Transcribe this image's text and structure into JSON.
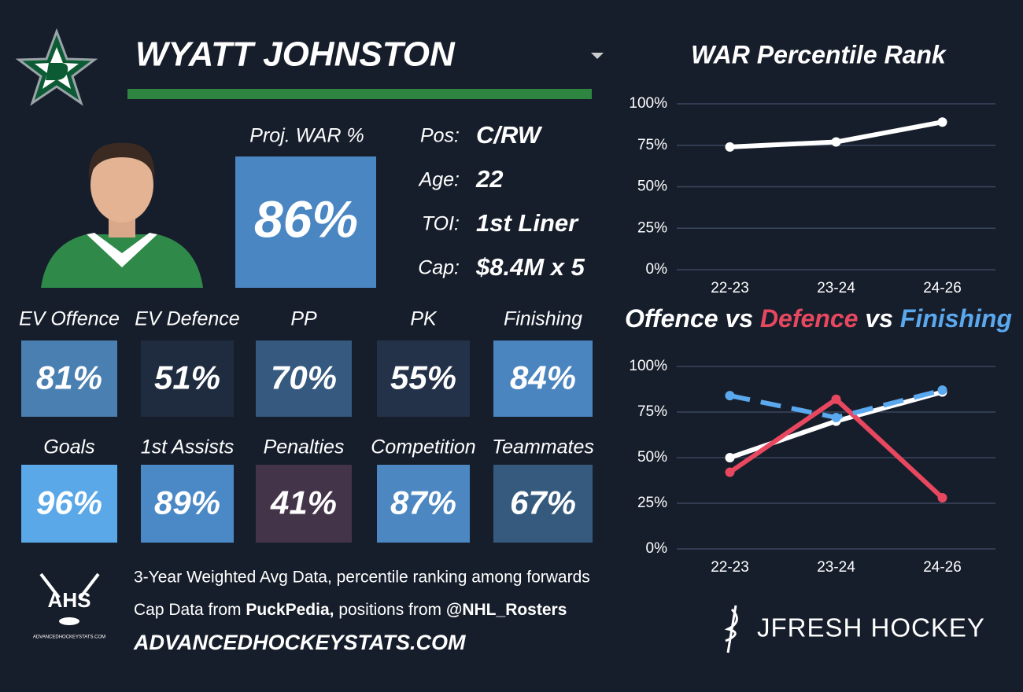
{
  "header": {
    "name": "WYATT JOHNSTON"
  },
  "proj_war": {
    "label": "Proj. WAR %",
    "value": "86%",
    "color": "#4a86c2"
  },
  "bio": [
    {
      "label": "Pos:",
      "value": "C/RW"
    },
    {
      "label": "Age:",
      "value": "22"
    },
    {
      "label": "TOI:",
      "value": "1st Liner"
    },
    {
      "label": "Cap:",
      "value": "$8.4M x 5"
    }
  ],
  "stats": [
    {
      "label": "EV Offence",
      "value": "81%",
      "color": "#4a7fb2"
    },
    {
      "label": "EV Defence",
      "value": "51%",
      "color": "#1f2c3f"
    },
    {
      "label": "PP",
      "value": "70%",
      "color": "#35597f"
    },
    {
      "label": "PK",
      "value": "55%",
      "color": "#243249"
    },
    {
      "label": "Finishing",
      "value": "84%",
      "color": "#4b85c0"
    },
    {
      "label": "Goals",
      "value": "96%",
      "color": "#5aa8e8"
    },
    {
      "label": "1st Assists",
      "value": "89%",
      "color": "#4b89c6"
    },
    {
      "label": "Penalties",
      "value": "41%",
      "color": "#44344a"
    },
    {
      "label": "Competition",
      "value": "87%",
      "color": "#4c87c2"
    },
    {
      "label": "Teammates",
      "value": "67%",
      "color": "#355a7e"
    }
  ],
  "footer": {
    "line1": "3-Year Weighted Avg Data, percentile ranking among forwards",
    "line2": [
      "Cap Data from",
      "PuckPedia,",
      "positions from",
      "@NHL_Rosters"
    ],
    "website": "ADVANCEDHOCKEYSTATS.COM"
  },
  "logos": {
    "ahs": "AHS",
    "ahs_url": "ADVANCEDHOCKEYSTATS.COM",
    "brand": "JFRESH HOCKEY"
  },
  "chart_data": [
    {
      "type": "line",
      "title": "WAR Percentile Rank",
      "categories": [
        "22-23",
        "23-24",
        "24-26"
      ],
      "series": [
        {
          "color": "#ffffff",
          "values": [
            74,
            77,
            89
          ]
        }
      ],
      "ylim": [
        0,
        100
      ],
      "yticks": [
        {
          "value": 0,
          "label": "0%"
        },
        {
          "value": 25,
          "label": "25%"
        },
        {
          "value": 50,
          "label": "50%"
        },
        {
          "value": 75,
          "label": "75%"
        },
        {
          "value": 100,
          "label": "100%"
        }
      ],
      "grid": true
    },
    {
      "type": "line",
      "title_separator": "vs",
      "categories": [
        "22-23",
        "23-24",
        "24-26"
      ],
      "series": [
        {
          "name": "Offence",
          "color": "#ffffff",
          "values": [
            50,
            70,
            86
          ]
        },
        {
          "name": "Defence",
          "color": "#e8485f",
          "values": [
            42,
            82,
            28
          ]
        },
        {
          "name": "Finishing",
          "color": "#5aa8ee",
          "values": [
            84,
            72,
            87
          ],
          "dash": true
        }
      ],
      "ylim": [
        0,
        100
      ],
      "yticks": [
        {
          "value": 0,
          "label": "0%"
        },
        {
          "value": 25,
          "label": "25%"
        },
        {
          "value": 50,
          "label": "50%"
        },
        {
          "value": 75,
          "label": "75%"
        },
        {
          "value": 100,
          "label": "100%"
        }
      ],
      "grid": true
    }
  ]
}
